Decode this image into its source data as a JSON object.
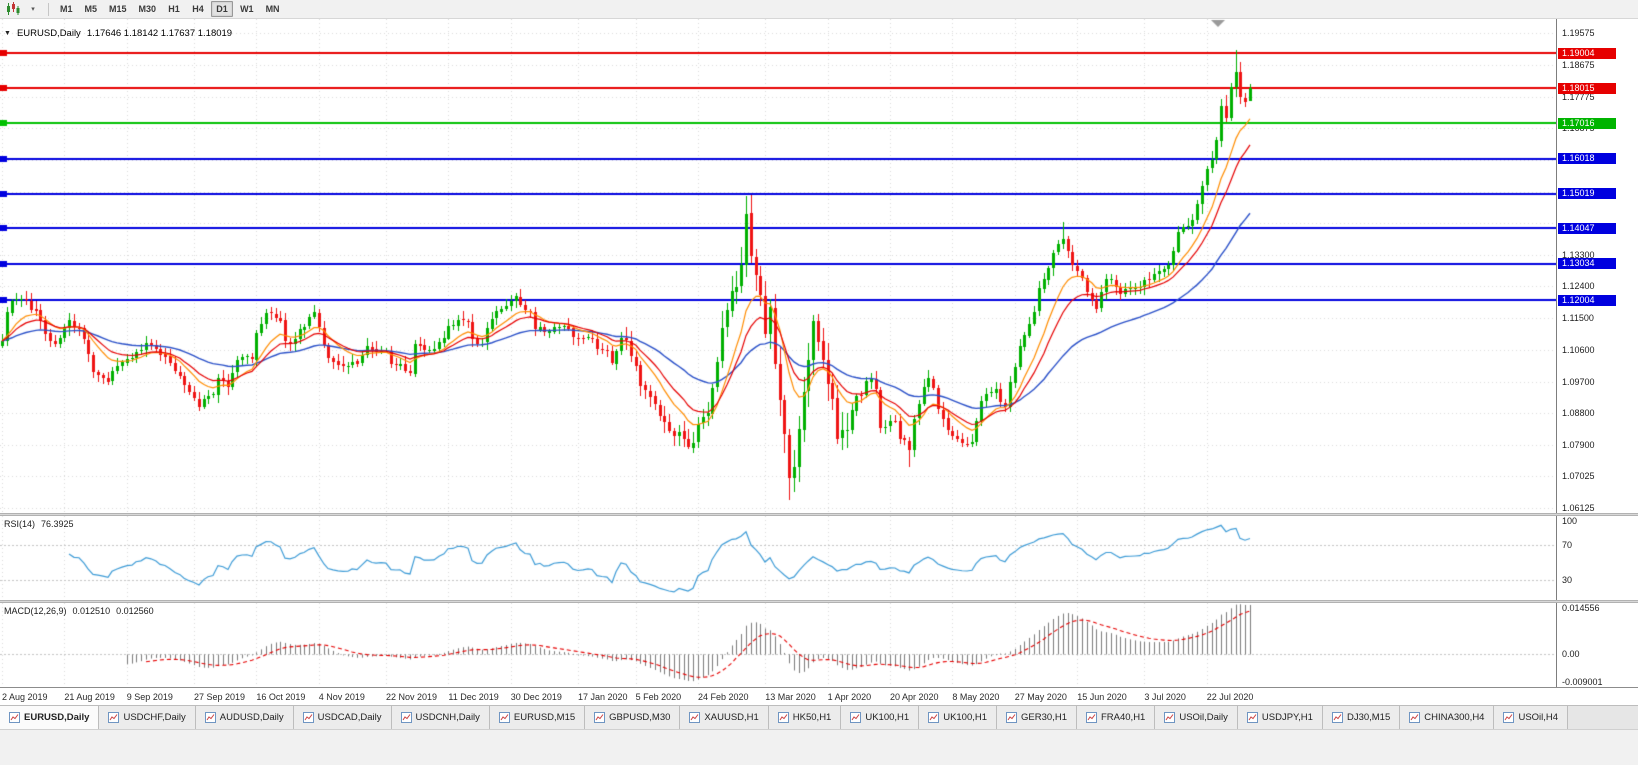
{
  "toolbar": {
    "timeframes": [
      "M1",
      "M5",
      "M15",
      "M30",
      "H1",
      "H4",
      "D1",
      "W1",
      "MN"
    ],
    "active_timeframe": "D1"
  },
  "main_panel": {
    "title": "EURUSD,Daily",
    "ohlc": "1.17646 1.18142 1.17637 1.18019"
  },
  "rsi_panel": {
    "label": "RSI(14)",
    "value": "76.3925",
    "scale_labels": [
      {
        "v": 100,
        "label": "100"
      },
      {
        "v": 70,
        "label": "70"
      },
      {
        "v": 30,
        "label": "30"
      }
    ]
  },
  "macd_panel": {
    "label": "MACD(12,26,9)",
    "value_main": "0.012510",
    "value_signal": "0.012560",
    "scale_labels": [
      {
        "v": 0.014556,
        "label": "0.014556"
      },
      {
        "v": 0,
        "label": "0.00"
      },
      {
        "v": -0.009001,
        "label": "-0.009001"
      }
    ]
  },
  "price_scale": {
    "labels": [
      "1.19575",
      "1.18675",
      "1.17775",
      "1.16875",
      "1.13300",
      "1.12400",
      "1.11500",
      "1.10600",
      "1.09700",
      "1.08800",
      "1.07900",
      "1.07025",
      "1.06125"
    ],
    "grid_extra_lines": [
      1.15975,
      1.15075,
      1.142
    ],
    "badges": [
      {
        "price": 1.19004,
        "label": "1.19004",
        "color": "#e60000"
      },
      {
        "price": 1.18015,
        "label": "1.18015",
        "color": "#e60000"
      },
      {
        "price": 1.17016,
        "label": "1.17016",
        "color": "#00b400"
      },
      {
        "price": 1.16018,
        "label": "1.16018",
        "color": "#0000df"
      },
      {
        "price": 1.15019,
        "label": "1.15019",
        "color": "#0000df"
      },
      {
        "price": 1.14047,
        "label": "1.14047",
        "color": "#0000df"
      },
      {
        "price": 1.13034,
        "label": "1.13034",
        "color": "#0000df"
      },
      {
        "price": 1.12004,
        "label": "1.12004",
        "color": "#0000df"
      }
    ]
  },
  "tabs": {
    "active_index": 0,
    "items": [
      "EURUSD,Daily",
      "USDCHF,Daily",
      "AUDUSD,Daily",
      "USDCAD,Daily",
      "USDCNH,Daily",
      "EURUSD,M15",
      "GBPUSD,M30",
      "XAUUSD,H1",
      "HK50,H1",
      "UK100,H1",
      "UK100,H1",
      "GER30,H1",
      "FRA40,H1",
      "USOil,Daily",
      "USDJPY,H1",
      "DJ30,M15",
      "CHINA300,H4",
      "USOil,H4"
    ]
  },
  "chart_data": {
    "type": "candlestick",
    "symbol": "EURUSD",
    "timeframe": "Daily",
    "title": "EURUSD,Daily",
    "bar_count": 261,
    "price_axis_range": [
      1.0598,
      1.1997
    ],
    "up_color": "#00b000",
    "down_color": "#ef1414",
    "last_bar": {
      "open": 1.17646,
      "high": 1.18142,
      "low": 1.17637,
      "close": 1.18019
    },
    "close_waypoints": [
      [
        0,
        1.1085
      ],
      [
        2,
        1.1198
      ],
      [
        5,
        1.12
      ],
      [
        7,
        1.117
      ],
      [
        9,
        1.1105
      ],
      [
        11,
        1.1078
      ],
      [
        14,
        1.1144
      ],
      [
        17,
        1.109
      ],
      [
        20,
        1.099
      ],
      [
        22,
        1.097
      ],
      [
        25,
        1.1025
      ],
      [
        29,
        1.106
      ],
      [
        31,
        1.1073
      ],
      [
        34,
        1.104
      ],
      [
        36,
        1.1
      ],
      [
        39,
        1.094
      ],
      [
        41,
        1.0899
      ],
      [
        43,
        1.093
      ],
      [
        45,
        1.0979
      ],
      [
        47,
        1.0956
      ],
      [
        50,
        1.104
      ],
      [
        52,
        1.1034
      ],
      [
        55,
        1.1165
      ],
      [
        57,
        1.115
      ],
      [
        60,
        1.108
      ],
      [
        64,
        1.1152
      ],
      [
        65,
        1.1166
      ],
      [
        67,
        1.1073
      ],
      [
        70,
        1.1018
      ],
      [
        74,
        1.1021
      ],
      [
        76,
        1.1072
      ],
      [
        79,
        1.1058
      ],
      [
        82,
        1.1018
      ],
      [
        85,
        1.0995
      ],
      [
        86,
        1.1078
      ],
      [
        89,
        1.106
      ],
      [
        94,
        1.113
      ],
      [
        96,
        1.1145
      ],
      [
        100,
        1.1078
      ],
      [
        104,
        1.1177
      ],
      [
        107,
        1.1212
      ],
      [
        109,
        1.1172
      ],
      [
        113,
        1.111
      ],
      [
        117,
        1.1128
      ],
      [
        120,
        1.109
      ],
      [
        123,
        1.1093
      ],
      [
        127,
        1.1022
      ],
      [
        129,
        1.1094
      ],
      [
        131,
        1.1042
      ],
      [
        134,
        1.0945
      ],
      [
        137,
        1.0873
      ],
      [
        139,
        1.0831
      ],
      [
        143,
        1.0786
      ],
      [
        145,
        1.0851
      ],
      [
        147,
        1.088
      ],
      [
        149,
        1.1026
      ],
      [
        151,
        1.1173
      ],
      [
        153,
        1.1238
      ],
      [
        155,
        1.1446
      ],
      [
        157,
        1.1271
      ],
      [
        159,
        1.1105
      ],
      [
        160,
        1.118
      ],
      [
        162,
        1.0918
      ],
      [
        164,
        1.0698
      ],
      [
        165,
        1.0727
      ],
      [
        168,
        1.103
      ],
      [
        169,
        1.1141
      ],
      [
        171,
        1.1031
      ],
      [
        172,
        1.0963
      ],
      [
        174,
        1.0808
      ],
      [
        178,
        1.093
      ],
      [
        181,
        1.098
      ],
      [
        183,
        1.084
      ],
      [
        186,
        1.0858
      ],
      [
        189,
        1.0775
      ],
      [
        192,
        1.0955
      ],
      [
        193,
        1.098
      ],
      [
        197,
        1.0834
      ],
      [
        199,
        1.0807
      ],
      [
        202,
        1.08
      ],
      [
        204,
        1.0915
      ],
      [
        207,
        1.0949
      ],
      [
        209,
        1.0897
      ],
      [
        213,
        1.1101
      ],
      [
        214,
        1.1134
      ],
      [
        216,
        1.1234
      ],
      [
        218,
        1.1291
      ],
      [
        221,
        1.1373
      ],
      [
        223,
        1.1301
      ],
      [
        225,
        1.1264
      ],
      [
        228,
        1.1177
      ],
      [
        230,
        1.126
      ],
      [
        233,
        1.1219
      ],
      [
        235,
        1.1234
      ],
      [
        237,
        1.1239
      ],
      [
        240,
        1.1274
      ],
      [
        243,
        1.13
      ],
      [
        245,
        1.1394
      ],
      [
        248,
        1.1427
      ],
      [
        250,
        1.1525
      ],
      [
        252,
        1.1598
      ],
      [
        254,
        1.1752
      ],
      [
        255,
        1.1716
      ],
      [
        257,
        1.1847
      ],
      [
        258,
        1.1776
      ],
      [
        259,
        1.1762
      ],
      [
        260,
        1.18019
      ]
    ],
    "spikes": [
      {
        "i": 143,
        "low": 1.0778
      },
      {
        "i": 155,
        "high": 1.1495
      },
      {
        "i": 164,
        "low": 1.0636
      },
      {
        "i": 189,
        "low": 1.0727
      },
      {
        "i": 221,
        "high": 1.1422
      },
      {
        "i": 257,
        "high": 1.1909
      }
    ],
    "horizontal_lines": [
      {
        "price": 1.19004,
        "color": "#e60000"
      },
      {
        "price": 1.18015,
        "color": "#e60000"
      },
      {
        "price": 1.17016,
        "color": "#00c000"
      },
      {
        "price": 1.16018,
        "color": "#0000df"
      },
      {
        "price": 1.15019,
        "color": "#0000df"
      },
      {
        "price": 1.14047,
        "color": "#0000df"
      },
      {
        "price": 1.13034,
        "color": "#0000df"
      },
      {
        "price": 1.12004,
        "color": "#0000df"
      }
    ],
    "moving_averages": [
      {
        "type": "ema",
        "period": 40,
        "color": "#2a50c8",
        "width": 1.4
      },
      {
        "type": "ema",
        "period": 10,
        "color": "#ff8c00",
        "width": 1.2
      },
      {
        "type": "ema",
        "period": 16,
        "color": "#e60000",
        "width": 1.2
      }
    ],
    "rsi": {
      "period": 14,
      "current": 76.3925,
      "levels": [
        70,
        30
      ],
      "color": "#3d9bd6"
    },
    "macd": {
      "fast": 12,
      "slow": 26,
      "signal_period": 9,
      "current_macd": 0.01251,
      "current_signal": 0.01256,
      "histogram_color": "#7a7a7a",
      "signal_color": "#e60000"
    },
    "dates": [
      {
        "bar": 0,
        "label": "2 Aug 2019"
      },
      {
        "bar": 13,
        "label": "21 Aug 2019"
      },
      {
        "bar": 26,
        "label": "9 Sep 2019"
      },
      {
        "bar": 40,
        "label": "27 Sep 2019"
      },
      {
        "bar": 53,
        "label": "16 Oct 2019"
      },
      {
        "bar": 66,
        "label": "4 Nov 2019"
      },
      {
        "bar": 80,
        "label": "22 Nov 2019"
      },
      {
        "bar": 93,
        "label": "11 Dec 2019"
      },
      {
        "bar": 106,
        "label": "30 Dec 2019"
      },
      {
        "bar": 120,
        "label": "17 Jan 2020"
      },
      {
        "bar": 132,
        "label": "5 Feb 2020"
      },
      {
        "bar": 145,
        "label": "24 Feb 2020"
      },
      {
        "bar": 159,
        "label": "13 Mar 2020"
      },
      {
        "bar": 172,
        "label": "1 Apr 2020"
      },
      {
        "bar": 185,
        "label": "20 Apr 2020"
      },
      {
        "bar": 198,
        "label": "8 May 2020"
      },
      {
        "bar": 211,
        "label": "27 May 2020"
      },
      {
        "bar": 224,
        "label": "15 Jun 2020"
      },
      {
        "bar": 238,
        "label": "3 Jul 2020"
      },
      {
        "bar": 251,
        "label": "22 Jul 2020"
      }
    ],
    "seed": 9
  }
}
